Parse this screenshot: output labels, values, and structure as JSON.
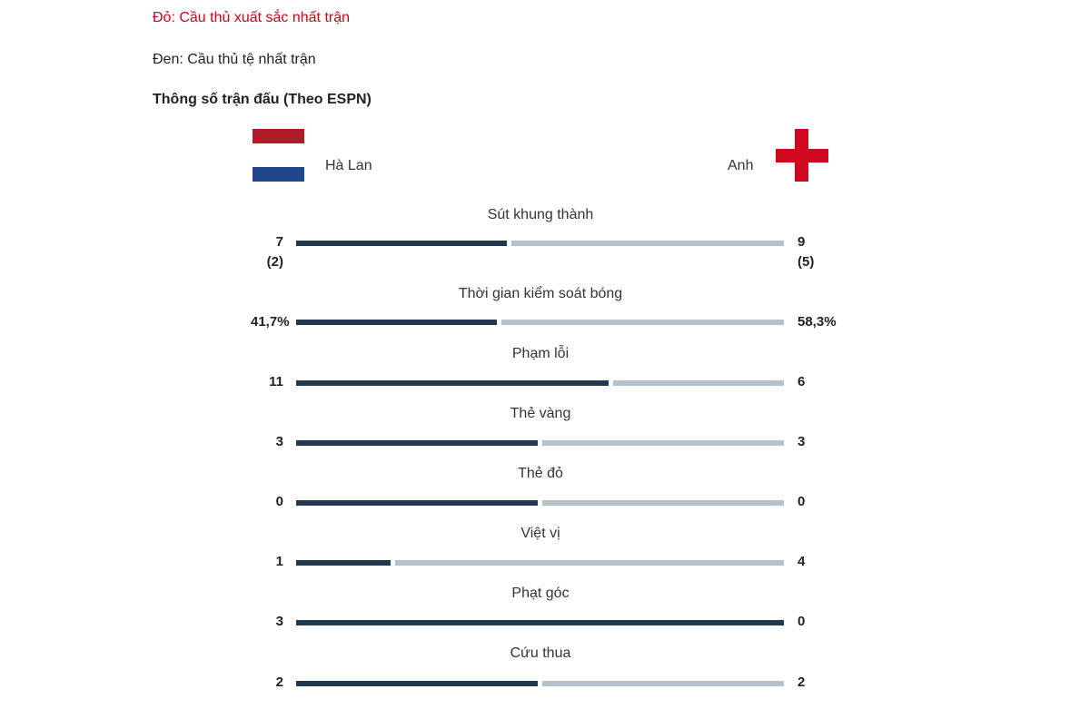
{
  "notes": {
    "best": "Đỏ: Cầu thủ xuất sắc nhất trận",
    "worst": "Đen: Cầu thủ tệ nhất trận"
  },
  "section_title": "Thông số trận đấu (Theo ESPN)",
  "teams": {
    "home": {
      "name": "Hà Lan",
      "flag": "netherlands-flag-icon"
    },
    "away": {
      "name": "Anh",
      "flag": "england-flag-icon"
    }
  },
  "colors": {
    "home_bar": "#22384f",
    "away_bar": "#b6c2cb",
    "best_text": "#d0021b"
  },
  "stats": [
    {
      "label": "Sút khung thành",
      "home": "7",
      "home_sub": "(2)",
      "away": "9",
      "away_sub": "(5)",
      "home_share": 0.4375
    },
    {
      "label": "Thời gian kiểm soát bóng",
      "home": "41,7%",
      "home_sub": "",
      "away": "58,3%",
      "away_sub": "",
      "home_share": 0.417
    },
    {
      "label": "Phạm lỗi",
      "home": "11",
      "home_sub": "",
      "away": "6",
      "away_sub": "",
      "home_share": 0.647
    },
    {
      "label": "Thẻ vàng",
      "home": "3",
      "home_sub": "",
      "away": "3",
      "away_sub": "",
      "home_share": 0.5
    },
    {
      "label": "Thẻ đỏ",
      "home": "0",
      "home_sub": "",
      "away": "0",
      "away_sub": "",
      "home_share": 0.5
    },
    {
      "label": "Việt vị",
      "home": "1",
      "home_sub": "",
      "away": "4",
      "away_sub": "",
      "home_share": 0.2
    },
    {
      "label": "Phạt góc",
      "home": "3",
      "home_sub": "",
      "away": "0",
      "away_sub": "",
      "home_share": 1.0
    },
    {
      "label": "Cứu thua",
      "home": "2",
      "home_sub": "",
      "away": "2",
      "away_sub": "",
      "home_share": 0.5
    }
  ]
}
